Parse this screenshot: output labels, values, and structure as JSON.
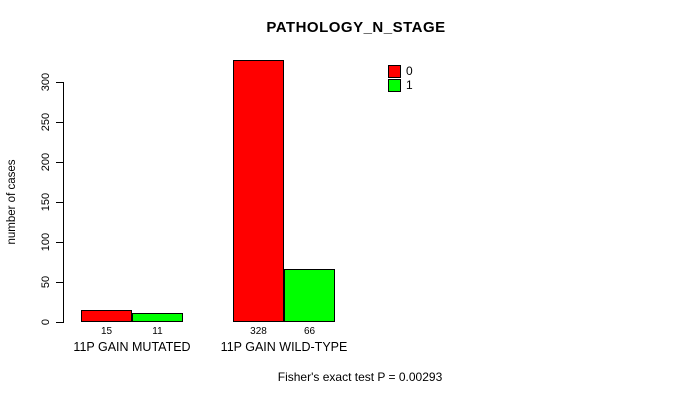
{
  "title": "PATHOLOGY_N_STAGE",
  "footer": "Fisher's exact test P = 0.00293",
  "chart_data": {
    "type": "bar",
    "title": "PATHOLOGY_N_STAGE",
    "categories": [
      "11P GAIN MUTATED",
      "11P GAIN WILD-TYPE"
    ],
    "series": [
      {
        "name": "0",
        "color": "#FF0000",
        "values": [
          15,
          328
        ]
      },
      {
        "name": "1",
        "color": "#00FF00",
        "values": [
          11,
          66
        ]
      }
    ],
    "xlabel": "",
    "ylabel": "number of cases",
    "yticks": [
      0,
      50,
      100,
      150,
      200,
      250,
      300
    ],
    "ylim": [
      0,
      330
    ],
    "grid": false,
    "legend_position": "top-right",
    "bar_value_labels": true,
    "annotation": "Fisher's exact test P = 0.00293"
  }
}
